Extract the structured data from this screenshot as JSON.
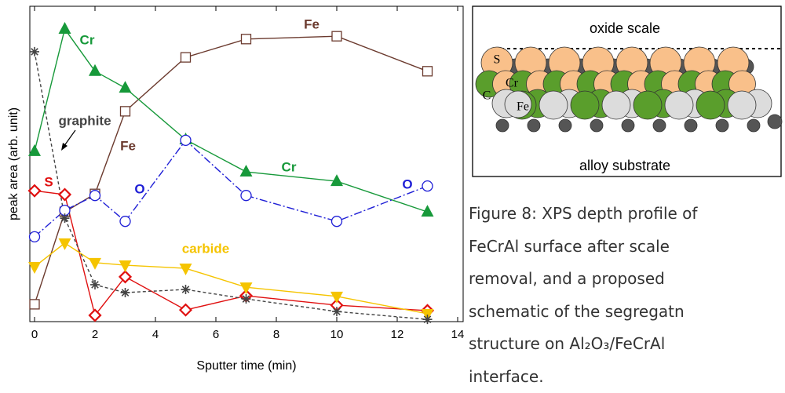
{
  "chart_data": {
    "type": "line",
    "x_label": "Sputter time (min)",
    "y_label": "peak area (arb. unit)",
    "x": [
      0,
      1,
      2,
      3,
      5,
      7,
      10,
      13
    ],
    "xlim": [
      0,
      14
    ],
    "xticks": [
      0,
      2,
      4,
      6,
      8,
      10,
      12,
      14
    ],
    "ylim": [
      0,
      100
    ],
    "series": [
      {
        "name": "Fe",
        "color": "#6b3a2e",
        "marker": "square",
        "values": [
          5.5,
          34.8,
          40.5,
          66.7,
          83.8,
          89.6,
          90.5,
          79.4
        ]
      },
      {
        "name": "Cr",
        "color": "#17993a",
        "marker": "triangle-up",
        "values": [
          54.0,
          92.8,
          79.4,
          74.1,
          57.7,
          47.5,
          44.5,
          34.8
        ]
      },
      {
        "name": "O",
        "color": "#1f1fd6",
        "marker": "circle",
        "dash": "10 3 2 3",
        "values": [
          26.9,
          35.3,
          40.0,
          31.8,
          57.5,
          40.0,
          31.8,
          43.0
        ]
      },
      {
        "name": "S",
        "color": "#e01010",
        "marker": "diamond",
        "values": [
          41.5,
          40.3,
          2.0,
          14.2,
          3.7,
          8.2,
          5.2,
          3.5
        ]
      },
      {
        "name": "carbide",
        "color": "#f5c400",
        "marker": "triangle-down",
        "values": [
          17.4,
          24.9,
          18.7,
          17.9,
          16.9,
          10.9,
          8.0,
          2.5
        ]
      },
      {
        "name": "graphite",
        "color": "#444444",
        "marker": "star",
        "dash": "4 3",
        "values": [
          85.6,
          32.8,
          11.7,
          9.2,
          10.2,
          7.2,
          3.2,
          0.7
        ]
      }
    ]
  },
  "schematic": {
    "top": "oxide scale",
    "bottom": "alloy substrate",
    "labels": [
      "S",
      "Cr",
      "C",
      "Fe"
    ]
  },
  "caption": [
    "Figure 8: XPS depth profile of",
    "FeCrAl surface after scale",
    "removal, and a proposed",
    "schematic of the segregatn",
    "structure on Al₂O₃/FeCrAl",
    "interface."
  ]
}
